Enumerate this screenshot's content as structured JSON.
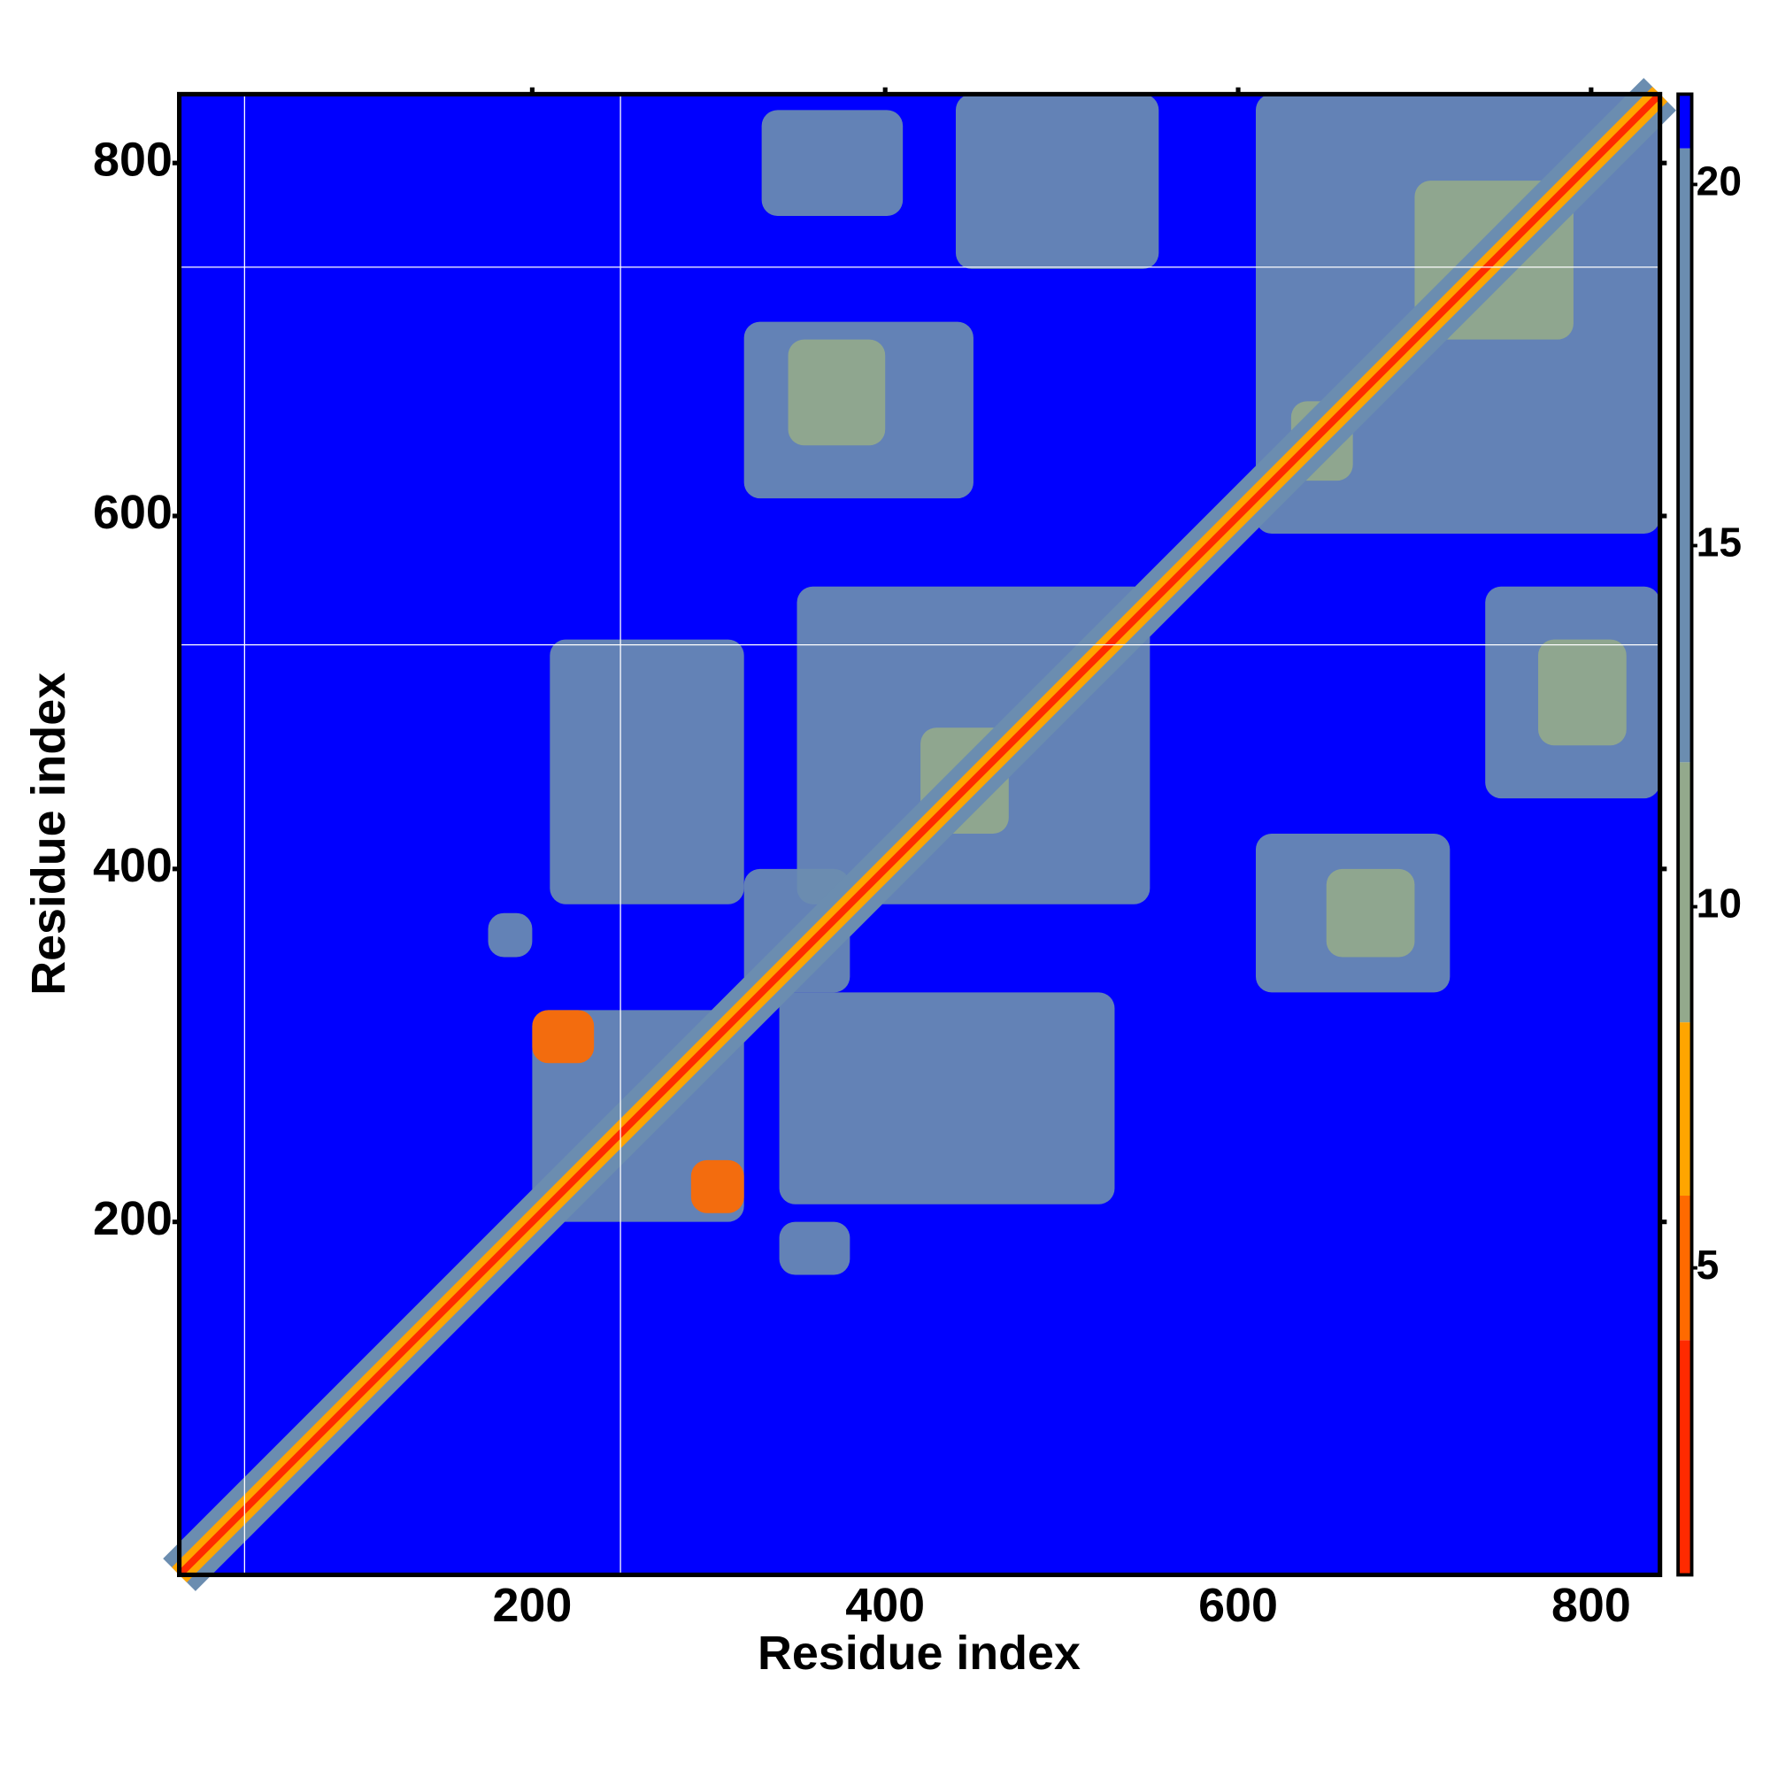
{
  "chart_data": {
    "type": "heatmap",
    "xlabel": "Residue index",
    "ylabel": "Residue index",
    "xlim": [
      0,
      839
    ],
    "ylim": [
      0,
      839
    ],
    "xticks": [
      200,
      400,
      600,
      800
    ],
    "yticks": [
      200,
      400,
      600,
      800
    ],
    "background": 21,
    "colorscale": [
      [
        0.75,
        "#e60000"
      ],
      [
        4,
        "#ff2a00"
      ],
      [
        6,
        "#ff6a00"
      ],
      [
        8.4,
        "#ffa500"
      ],
      [
        12,
        "#93a98c"
      ],
      [
        20.5,
        "#6b8db0"
      ],
      [
        21.25,
        "#0000ff"
      ]
    ],
    "colorlim": [
      0.75,
      21.25
    ],
    "colorticks": [
      5,
      10,
      15,
      20
    ],
    "diagonal": [
      {
        "width": 26,
        "value": 17
      },
      {
        "width": 12,
        "value": 7
      },
      {
        "width": 4,
        "value": 2
      }
    ],
    "regions": [
      {
        "x": [
          610,
          839
        ],
        "y": [
          590,
          839
        ],
        "value": 17
      },
      {
        "x": [
          350,
          550
        ],
        "y": [
          380,
          560
        ],
        "value": 17
      },
      {
        "x": [
          440,
          555
        ],
        "y": [
          740,
          839
        ],
        "value": 17
      },
      {
        "x": [
          330,
          410
        ],
        "y": [
          770,
          830
        ],
        "value": 19
      },
      {
        "x": [
          320,
          450
        ],
        "y": [
          610,
          710
        ],
        "value": 17
      },
      {
        "x": [
          345,
          400
        ],
        "y": [
          640,
          700
        ],
        "value": 10
      },
      {
        "x": [
          320,
          380
        ],
        "y": [
          330,
          400
        ],
        "value": 17
      },
      {
        "x": [
          740,
          839
        ],
        "y": [
          440,
          560
        ],
        "value": 17
      },
      {
        "x": [
          770,
          820
        ],
        "y": [
          470,
          530
        ],
        "value": 10
      },
      {
        "x": [
          610,
          720
        ],
        "y": [
          330,
          420
        ],
        "value": 17
      },
      {
        "x": [
          650,
          700
        ],
        "y": [
          350,
          400
        ],
        "value": 10
      },
      {
        "x": [
          200,
          320
        ],
        "y": [
          200,
          320
        ],
        "value": 16
      },
      {
        "x": [
          210,
          320
        ],
        "y": [
          380,
          530
        ],
        "value": 19
      },
      {
        "x": [
          340,
          530
        ],
        "y": [
          210,
          330
        ],
        "value": 19
      },
      {
        "x": [
          340,
          380
        ],
        "y": [
          170,
          200
        ],
        "value": 18
      },
      {
        "x": [
          175,
          200
        ],
        "y": [
          350,
          375
        ],
        "value": 18
      },
      {
        "x": [
          630,
          665
        ],
        "y": [
          620,
          665
        ],
        "value": 9
      },
      {
        "x": [
          420,
          470
        ],
        "y": [
          420,
          480
        ],
        "value": 10
      },
      {
        "x": [
          700,
          790
        ],
        "y": [
          700,
          790
        ],
        "value": 11
      },
      {
        "x": [
          200,
          235
        ],
        "y": [
          290,
          320
        ],
        "value": 6
      },
      {
        "x": [
          290,
          320
        ],
        "y": [
          205,
          235
        ],
        "value": 6
      }
    ],
    "gap_lines": {
      "x": [
        37,
        250
      ],
      "y": [
        741,
        527
      ]
    }
  }
}
